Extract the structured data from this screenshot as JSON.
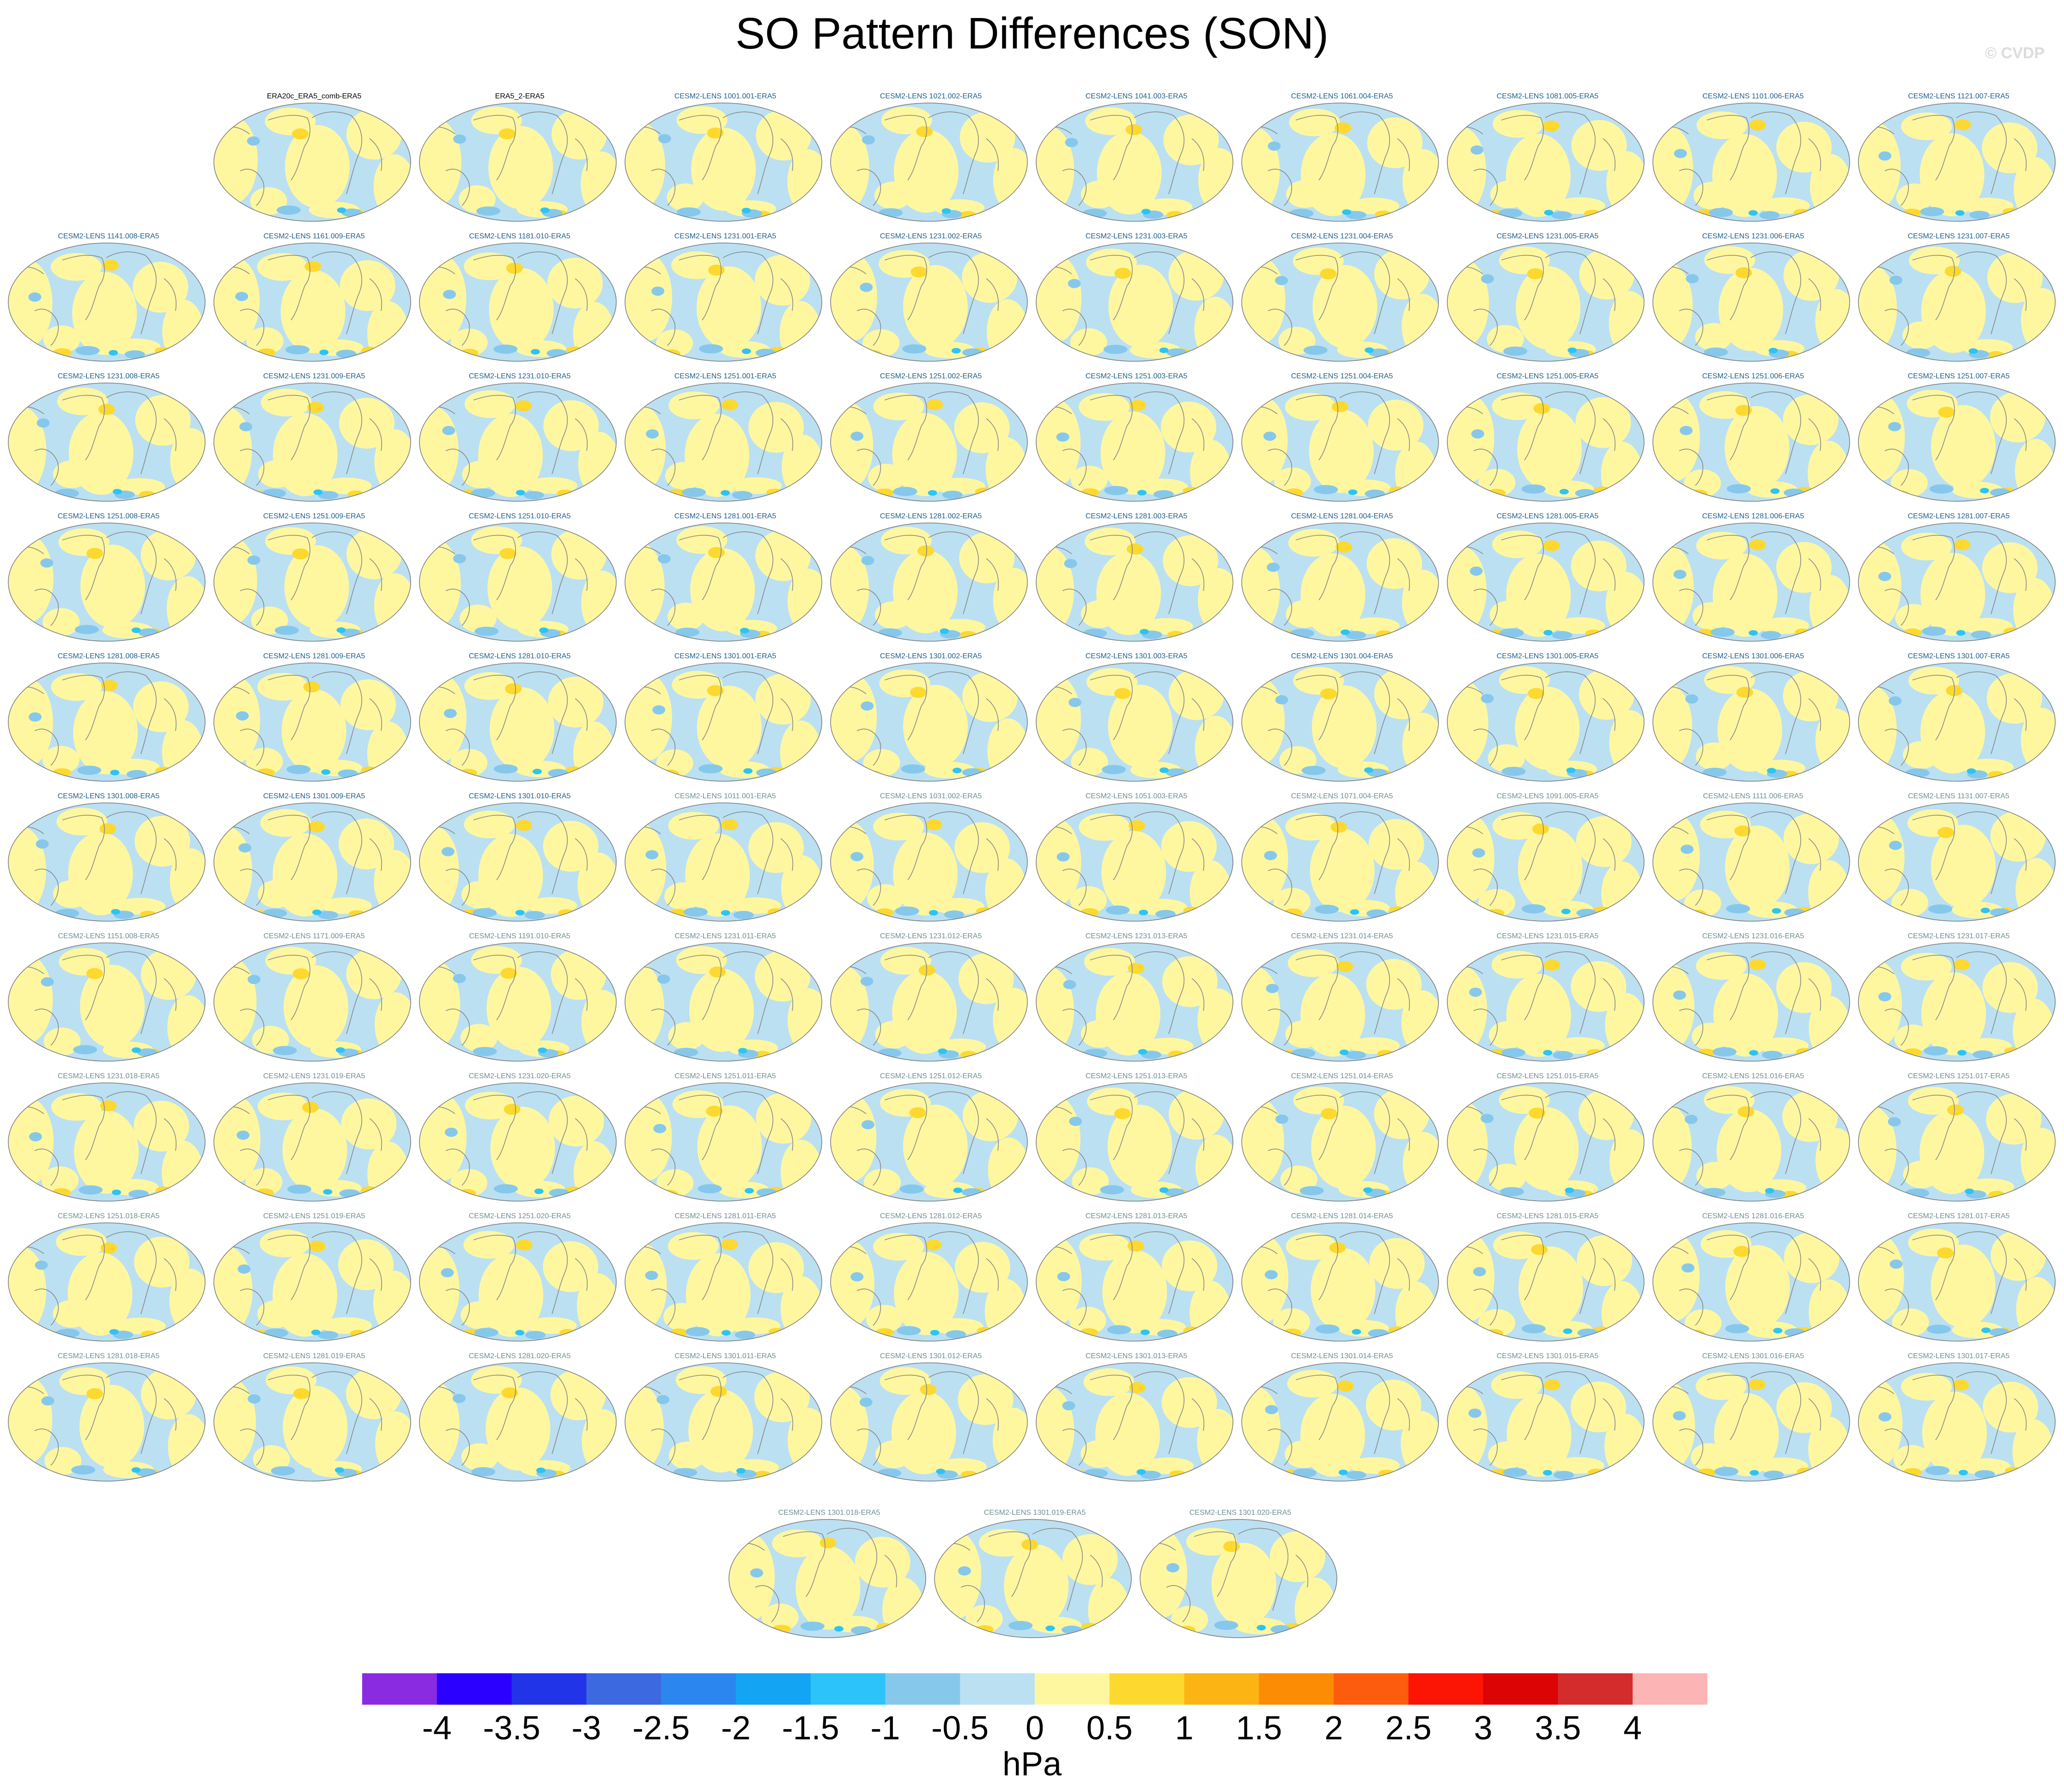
{
  "title": "SO Pattern Differences (SON)",
  "watermark": "© CVDP",
  "chart_data": {
    "type": "heatmap",
    "title": "SO Pattern Differences (SON)",
    "units": "hPa",
    "colorbar": {
      "ticks": [
        "-4",
        "-3.5",
        "-3",
        "-2.5",
        "-2",
        "-1.5",
        "-1",
        "-0.5",
        "0",
        "0.5",
        "1",
        "1.5",
        "2",
        "2.5",
        "3",
        "3.5",
        "4"
      ],
      "colors": [
        "#8a2be2",
        "#2c00ff",
        "#2234e8",
        "#3c68e0",
        "#2c86f0",
        "#14a4f4",
        "#2cc4f8",
        "#86c8ec",
        "#bbe0f2",
        "#fff7a0",
        "#fdd92f",
        "#fcb414",
        "#fc8c04",
        "#fc5c0c",
        "#fc1404",
        "#dc0404",
        "#d42c2c",
        "#fcb4b4"
      ]
    },
    "panels": [
      {
        "label": "ERA20c_ERA5_comb-ERA5",
        "color": "#000000"
      },
      {
        "label": "ERA5_2-ERA5",
        "color": "#000000"
      },
      {
        "label": "CESM2-LENS 1001.001-ERA5",
        "color": "#1f5f8b"
      },
      {
        "label": "CESM2-LENS 1021.002-ERA5",
        "color": "#1f5f8b"
      },
      {
        "label": "CESM2-LENS 1041.003-ERA5",
        "color": "#1f5f8b"
      },
      {
        "label": "CESM2-LENS 1061.004-ERA5",
        "color": "#1f5f8b"
      },
      {
        "label": "CESM2-LENS 1081.005-ERA5",
        "color": "#1f5f8b"
      },
      {
        "label": "CESM2-LENS 1101.006-ERA5",
        "color": "#1f5f8b"
      },
      {
        "label": "CESM2-LENS 1121.007-ERA5",
        "color": "#1f5f8b"
      },
      {
        "label": "CESM2-LENS 1141.008-ERA5",
        "color": "#1f5f8b"
      },
      {
        "label": "CESM2-LENS 1161.009-ERA5",
        "color": "#1f5f8b"
      },
      {
        "label": "CESM2-LENS 1181.010-ERA5",
        "color": "#1f5f8b"
      },
      {
        "label": "CESM2-LENS 1231.001-ERA5",
        "color": "#1f5f8b"
      },
      {
        "label": "CESM2-LENS 1231.002-ERA5",
        "color": "#1f5f8b"
      },
      {
        "label": "CESM2-LENS 1231.003-ERA5",
        "color": "#1f5f8b"
      },
      {
        "label": "CESM2-LENS 1231.004-ERA5",
        "color": "#1f5f8b"
      },
      {
        "label": "CESM2-LENS 1231.005-ERA5",
        "color": "#1f5f8b"
      },
      {
        "label": "CESM2-LENS 1231.006-ERA5",
        "color": "#1f5f8b"
      },
      {
        "label": "CESM2-LENS 1231.007-ERA5",
        "color": "#1f5f8b"
      },
      {
        "label": "CESM2-LENS 1231.008-ERA5",
        "color": "#1f5f8b"
      },
      {
        "label": "CESM2-LENS 1231.009-ERA5",
        "color": "#1f5f8b"
      },
      {
        "label": "CESM2-LENS 1231.010-ERA5",
        "color": "#1f5f8b"
      },
      {
        "label": "CESM2-LENS 1251.001-ERA5",
        "color": "#1f5f8b"
      },
      {
        "label": "CESM2-LENS 1251.002-ERA5",
        "color": "#1f5f8b"
      },
      {
        "label": "CESM2-LENS 1251.003-ERA5",
        "color": "#1f5f8b"
      },
      {
        "label": "CESM2-LENS 1251.004-ERA5",
        "color": "#1f5f8b"
      },
      {
        "label": "CESM2-LENS 1251.005-ERA5",
        "color": "#1f5f8b"
      },
      {
        "label": "CESM2-LENS 1251.006-ERA5",
        "color": "#1f5f8b"
      },
      {
        "label": "CESM2-LENS 1251.007-ERA5",
        "color": "#1f5f8b"
      },
      {
        "label": "CESM2-LENS 1251.008-ERA5",
        "color": "#1f5f8b"
      },
      {
        "label": "CESM2-LENS 1251.009-ERA5",
        "color": "#1f5f8b"
      },
      {
        "label": "CESM2-LENS 1251.010-ERA5",
        "color": "#1f5f8b"
      },
      {
        "label": "CESM2-LENS 1281.001-ERA5",
        "color": "#1f5f8b"
      },
      {
        "label": "CESM2-LENS 1281.002-ERA5",
        "color": "#1f5f8b"
      },
      {
        "label": "CESM2-LENS 1281.003-ERA5",
        "color": "#1f5f8b"
      },
      {
        "label": "CESM2-LENS 1281.004-ERA5",
        "color": "#1f5f8b"
      },
      {
        "label": "CESM2-LENS 1281.005-ERA5",
        "color": "#1f5f8b"
      },
      {
        "label": "CESM2-LENS 1281.006-ERA5",
        "color": "#1f5f8b"
      },
      {
        "label": "CESM2-LENS 1281.007-ERA5",
        "color": "#1f5f8b"
      },
      {
        "label": "CESM2-LENS 1281.008-ERA5",
        "color": "#1f5f8b"
      },
      {
        "label": "CESM2-LENS 1281.009-ERA5",
        "color": "#1f5f8b"
      },
      {
        "label": "CESM2-LENS 1281.010-ERA5",
        "color": "#1f5f8b"
      },
      {
        "label": "CESM2-LENS 1301.001-ERA5",
        "color": "#1f5f8b"
      },
      {
        "label": "CESM2-LENS 1301.002-ERA5",
        "color": "#1f5f8b"
      },
      {
        "label": "CESM2-LENS 1301.003-ERA5",
        "color": "#1f5f8b"
      },
      {
        "label": "CESM2-LENS 1301.004-ERA5",
        "color": "#1f5f8b"
      },
      {
        "label": "CESM2-LENS 1301.005-ERA5",
        "color": "#1f5f8b"
      },
      {
        "label": "CESM2-LENS 1301.006-ERA5",
        "color": "#1f5f8b"
      },
      {
        "label": "CESM2-LENS 1301.007-ERA5",
        "color": "#1f5f8b"
      },
      {
        "label": "CESM2-LENS 1301.008-ERA5",
        "color": "#1f5f8b"
      },
      {
        "label": "CESM2-LENS 1301.009-ERA5",
        "color": "#1f5f8b"
      },
      {
        "label": "CESM2-LENS 1301.010-ERA5",
        "color": "#1f5f8b"
      },
      {
        "label": "CESM2-LENS 1011.001-ERA5",
        "color": "#6f8f90"
      },
      {
        "label": "CESM2-LENS 1031.002-ERA5",
        "color": "#6f8f90"
      },
      {
        "label": "CESM2-LENS 1051.003-ERA5",
        "color": "#6f8f90"
      },
      {
        "label": "CESM2-LENS 1071.004-ERA5",
        "color": "#6f8f90"
      },
      {
        "label": "CESM2-LENS 1091.005-ERA5",
        "color": "#6f8f90"
      },
      {
        "label": "CESM2-LENS 1111.006-ERA5",
        "color": "#6f8f90"
      },
      {
        "label": "CESM2-LENS 1131.007-ERA5",
        "color": "#6f8f90"
      },
      {
        "label": "CESM2-LENS 1151.008-ERA5",
        "color": "#6f8f90"
      },
      {
        "label": "CESM2-LENS 1171.009-ERA5",
        "color": "#6f8f90"
      },
      {
        "label": "CESM2-LENS 1191.010-ERA5",
        "color": "#6f8f90"
      },
      {
        "label": "CESM2-LENS 1231.011-ERA5",
        "color": "#6f8f90"
      },
      {
        "label": "CESM2-LENS 1231.012-ERA5",
        "color": "#6f8f90"
      },
      {
        "label": "CESM2-LENS 1231.013-ERA5",
        "color": "#6f8f90"
      },
      {
        "label": "CESM2-LENS 1231.014-ERA5",
        "color": "#6f8f90"
      },
      {
        "label": "CESM2-LENS 1231.015-ERA5",
        "color": "#6f8f90"
      },
      {
        "label": "CESM2-LENS 1231.016-ERA5",
        "color": "#6f8f90"
      },
      {
        "label": "CESM2-LENS 1231.017-ERA5",
        "color": "#6f8f90"
      },
      {
        "label": "CESM2-LENS 1231.018-ERA5",
        "color": "#6f8f90"
      },
      {
        "label": "CESM2-LENS 1231.019-ERA5",
        "color": "#6f8f90"
      },
      {
        "label": "CESM2-LENS 1231.020-ERA5",
        "color": "#6f8f90"
      },
      {
        "label": "CESM2-LENS 1251.011-ERA5",
        "color": "#6f8f90"
      },
      {
        "label": "CESM2-LENS 1251.012-ERA5",
        "color": "#6f8f90"
      },
      {
        "label": "CESM2-LENS 1251.013-ERA5",
        "color": "#6f8f90"
      },
      {
        "label": "CESM2-LENS 1251.014-ERA5",
        "color": "#6f8f90"
      },
      {
        "label": "CESM2-LENS 1251.015-ERA5",
        "color": "#6f8f90"
      },
      {
        "label": "CESM2-LENS 1251.016-ERA5",
        "color": "#6f8f90"
      },
      {
        "label": "CESM2-LENS 1251.017-ERA5",
        "color": "#6f8f90"
      },
      {
        "label": "CESM2-LENS 1251.018-ERA5",
        "color": "#6f8f90"
      },
      {
        "label": "CESM2-LENS 1251.019-ERA5",
        "color": "#6f8f90"
      },
      {
        "label": "CESM2-LENS 1251.020-ERA5",
        "color": "#6f8f90"
      },
      {
        "label": "CESM2-LENS 1281.011-ERA5",
        "color": "#6f8f90"
      },
      {
        "label": "CESM2-LENS 1281.012-ERA5",
        "color": "#6f8f90"
      },
      {
        "label": "CESM2-LENS 1281.013-ERA5",
        "color": "#6f8f90"
      },
      {
        "label": "CESM2-LENS 1281.014-ERA5",
        "color": "#6f8f90"
      },
      {
        "label": "CESM2-LENS 1281.015-ERA5",
        "color": "#6f8f90"
      },
      {
        "label": "CESM2-LENS 1281.016-ERA5",
        "color": "#6f8f90"
      },
      {
        "label": "CESM2-LENS 1281.017-ERA5",
        "color": "#6f8f90"
      },
      {
        "label": "CESM2-LENS 1281.018-ERA5",
        "color": "#6f8f90"
      },
      {
        "label": "CESM2-LENS 1281.019-ERA5",
        "color": "#6f8f90"
      },
      {
        "label": "CESM2-LENS 1281.020-ERA5",
        "color": "#6f8f90"
      },
      {
        "label": "CESM2-LENS 1301.011-ERA5",
        "color": "#6f8f90"
      },
      {
        "label": "CESM2-LENS 1301.012-ERA5",
        "color": "#6f8f90"
      },
      {
        "label": "CESM2-LENS 1301.013-ERA5",
        "color": "#6f8f90"
      },
      {
        "label": "CESM2-LENS 1301.014-ERA5",
        "color": "#6f8f90"
      },
      {
        "label": "CESM2-LENS 1301.015-ERA5",
        "color": "#6f8f90"
      },
      {
        "label": "CESM2-LENS 1301.016-ERA5",
        "color": "#6f8f90"
      },
      {
        "label": "CESM2-LENS 1301.017-ERA5",
        "color": "#6f8f90"
      },
      {
        "label": "CESM2-LENS 1301.018-ERA5",
        "color": "#6f8f90"
      },
      {
        "label": "CESM2-LENS 1301.019-ERA5",
        "color": "#6f8f90"
      },
      {
        "label": "CESM2-LENS 1301.020-ERA5",
        "color": "#6f8f90"
      }
    ]
  }
}
